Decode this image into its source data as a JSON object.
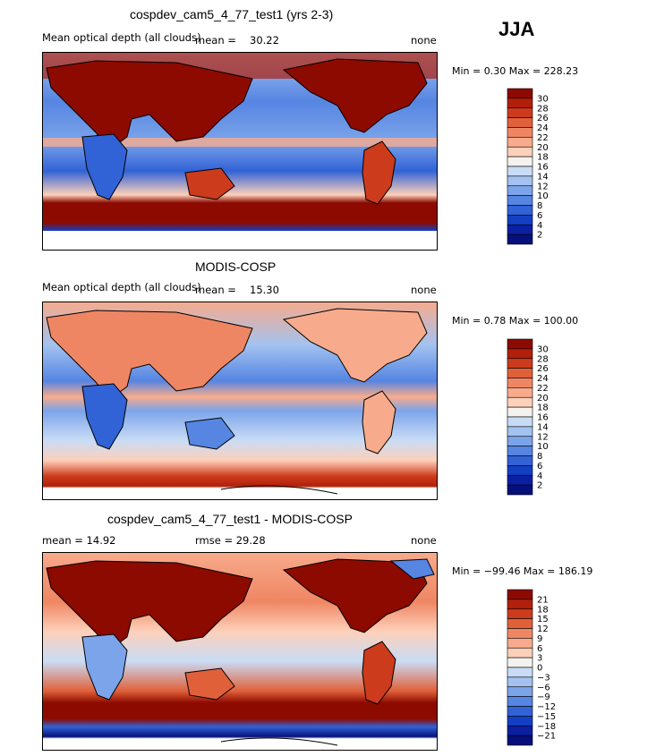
{
  "season_label": "JJA",
  "panels": [
    {
      "title": "cospdev_cam5_4_77_test1 (yrs 2-3)",
      "left_label": "Mean optical depth (all clouds)",
      "mean_label": "mean =",
      "mean_value": "30.22",
      "right_label": "none",
      "minmax": "Min =   0.30 Max = 228.23",
      "colorbar": {
        "labels": [
          "30",
          "28",
          "26",
          "24",
          "22",
          "20",
          "18",
          "16",
          "14",
          "12",
          "10",
          "8",
          "6",
          "4",
          "2"
        ],
        "colors": [
          "#8c0a00",
          "#b21f0a",
          "#cc3b1c",
          "#e0603a",
          "#ef8663",
          "#f7ab8c",
          "#fdd0ba",
          "#f4f2ee",
          "#c9dcf5",
          "#a3c2f0",
          "#7ca4ea",
          "#5685e2",
          "#3162d6",
          "#123fc4",
          "#0b1fa3",
          "#06107a"
        ]
      }
    },
    {
      "title": "MODIS-COSP",
      "left_label": "Mean optical depth (all clouds)",
      "mean_label": "mean =",
      "mean_value": "15.30",
      "right_label": "none",
      "minmax": "Min =   0.78 Max = 100.00",
      "colorbar": {
        "labels": [
          "30",
          "28",
          "26",
          "24",
          "22",
          "20",
          "18",
          "16",
          "14",
          "12",
          "10",
          "8",
          "6",
          "4",
          "2"
        ],
        "colors": [
          "#8c0a00",
          "#b21f0a",
          "#cc3b1c",
          "#e0603a",
          "#ef8663",
          "#f7ab8c",
          "#fdd0ba",
          "#f4f2ee",
          "#c9dcf5",
          "#a3c2f0",
          "#7ca4ea",
          "#5685e2",
          "#3162d6",
          "#123fc4",
          "#0b1fa3",
          "#06107a"
        ]
      }
    },
    {
      "title": "cospdev_cam5_4_77_test1 - MODIS-COSP",
      "left_label": "mean =   14.92",
      "rmse_label": "rmse =   29.28",
      "right_label": "none",
      "minmax": "Min = −99.46 Max = 186.19",
      "colorbar": {
        "labels": [
          "21",
          "18",
          "15",
          "12",
          "9",
          "6",
          "3",
          "0",
          "−3",
          "−6",
          "−9",
          "−12",
          "−15",
          "−18",
          "−21"
        ],
        "colors": [
          "#8c0a00",
          "#b21f0a",
          "#cc3b1c",
          "#e0603a",
          "#ef8663",
          "#f7ab8c",
          "#fdd0ba",
          "#f4f2ee",
          "#c9dcf5",
          "#a3c2f0",
          "#7ca4ea",
          "#5685e2",
          "#3162d6",
          "#123fc4",
          "#0b1fa3",
          "#06107a"
        ]
      }
    }
  ],
  "chart_data": [
    {
      "type": "heatmap",
      "title": "cospdev_cam5_4_77_test1 (yrs 2-3)",
      "variable": "Mean optical depth (all clouds)",
      "mean": 30.22,
      "min": 0.3,
      "max": 228.23,
      "units": "none",
      "levels": [
        2,
        4,
        6,
        8,
        10,
        12,
        14,
        16,
        18,
        20,
        22,
        24,
        26,
        28,
        30
      ]
    },
    {
      "type": "heatmap",
      "title": "MODIS-COSP",
      "variable": "Mean optical depth (all clouds)",
      "mean": 15.3,
      "min": 0.78,
      "max": 100.0,
      "units": "none",
      "levels": [
        2,
        4,
        6,
        8,
        10,
        12,
        14,
        16,
        18,
        20,
        22,
        24,
        26,
        28,
        30
      ]
    },
    {
      "type": "heatmap",
      "title": "cospdev_cam5_4_77_test1 - MODIS-COSP",
      "mean": 14.92,
      "rmse": 29.28,
      "min": -99.46,
      "max": 186.19,
      "units": "none",
      "levels": [
        -21,
        -18,
        -15,
        -12,
        -9,
        -6,
        -3,
        0,
        3,
        6,
        9,
        12,
        15,
        18,
        21
      ]
    }
  ]
}
